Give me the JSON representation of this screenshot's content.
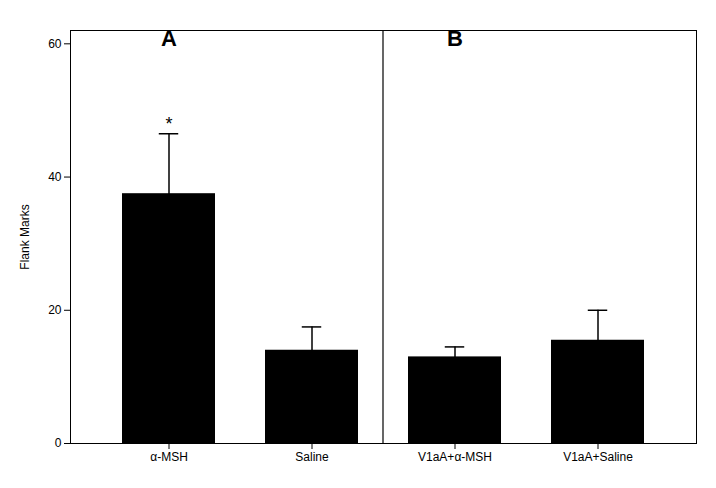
{
  "chart_data": {
    "type": "bar",
    "categories": [
      "α-MSH",
      "Saline",
      "V1aA+α-MSH",
      "V1aA+Saline"
    ],
    "values": [
      37.5,
      14.0,
      13.0,
      15.5
    ],
    "errors": [
      9.0,
      3.5,
      1.5,
      4.5
    ],
    "color": "#000000",
    "ylabel": "Flank Marks",
    "ylim": [
      0,
      62
    ],
    "yticks": [
      0,
      20,
      40,
      60
    ],
    "grid": false,
    "annotations": [
      {
        "text": "*",
        "category": "α-MSH"
      }
    ],
    "panels": [
      {
        "label": "A",
        "categories": [
          "α-MSH",
          "Saline"
        ]
      },
      {
        "label": "B",
        "categories": [
          "V1aA+α-MSH",
          "V1aA+Saline"
        ]
      }
    ]
  }
}
